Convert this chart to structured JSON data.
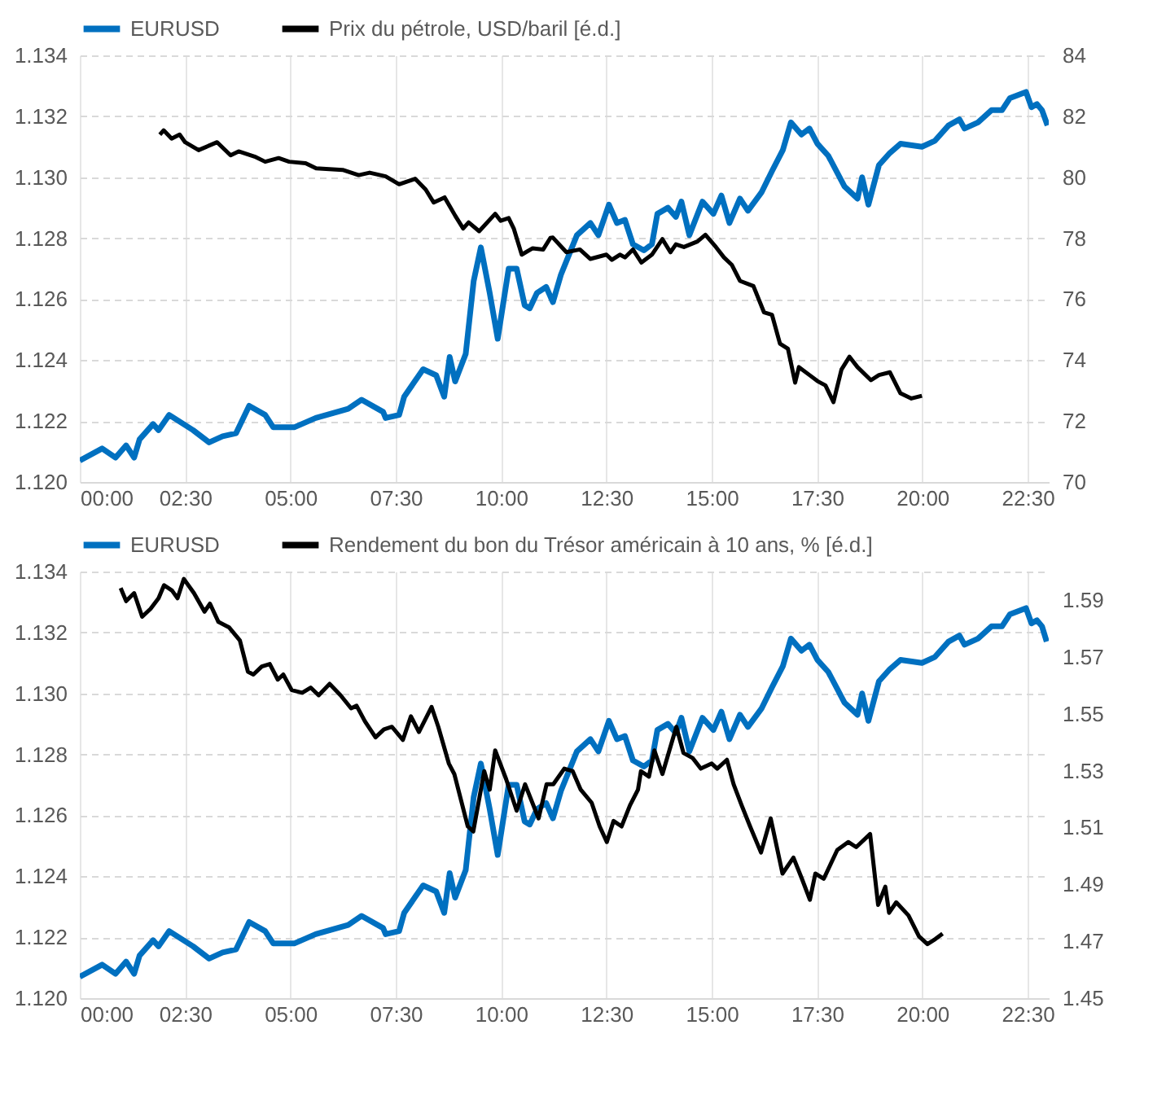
{
  "chart_data": [
    {
      "type": "line",
      "xlim": [
        0,
        23
      ],
      "xticks": [
        {
          "value": 0,
          "label": "00:00"
        },
        {
          "value": 2.5,
          "label": "02:30"
        },
        {
          "value": 5,
          "label": "05:00"
        },
        {
          "value": 7.5,
          "label": "07:30"
        },
        {
          "value": 10,
          "label": "10:00"
        },
        {
          "value": 12.5,
          "label": "12:30"
        },
        {
          "value": 15,
          "label": "15:00"
        },
        {
          "value": 17.5,
          "label": "17:30"
        },
        {
          "value": 20,
          "label": "20:00"
        },
        {
          "value": 22.5,
          "label": "22:30"
        }
      ],
      "ylim": [
        1.12,
        1.134
      ],
      "yticks": [
        {
          "value": 1.12,
          "label": "1.120"
        },
        {
          "value": 1.122,
          "label": "1.122"
        },
        {
          "value": 1.124,
          "label": "1.124"
        },
        {
          "value": 1.126,
          "label": "1.126"
        },
        {
          "value": 1.128,
          "label": "1.128"
        },
        {
          "value": 1.13,
          "label": "1.130"
        },
        {
          "value": 1.132,
          "label": "1.132"
        },
        {
          "value": 1.134,
          "label": "1.134"
        }
      ],
      "y2lim": [
        70,
        84
      ],
      "y2ticks": [
        70,
        72,
        74,
        76,
        78,
        80,
        82,
        84
      ],
      "grid": true,
      "legend": "top",
      "series": [
        {
          "name": "EURUSD",
          "color": "#0070c0",
          "x": [
            0,
            0.53,
            0.85,
            1.1,
            1.29,
            1.42,
            1.74,
            1.87,
            2.12,
            2.69,
            3.07,
            3.39,
            3.71,
            4.02,
            4.4,
            4.59,
            5.1,
            5.6,
            6.37,
            6.69,
            7.2,
            7.26,
            7.58,
            7.7,
            8.15,
            8.46,
            8.65,
            8.78,
            8.91,
            9.16,
            9.35,
            9.52,
            9.73,
            9.92,
            10.18,
            10.37,
            10.56,
            10.68,
            10.85,
            11.07,
            11.23,
            11.42,
            11.8,
            12.12,
            12.31,
            12.56,
            12.75,
            12.94,
            13.13,
            13.39,
            13.58,
            13.71,
            13.96,
            14.15,
            14.28,
            14.47,
            14.78,
            15.04,
            15.23,
            15.42,
            15.67,
            15.86,
            16.18,
            16.43,
            16.69,
            16.88,
            17.13,
            17.32,
            17.51,
            17.77,
            18.15,
            18.46,
            18.57,
            18.72,
            18.97,
            19.23,
            19.48,
            19.99,
            20.3,
            20.62,
            20.88,
            21.0,
            21.32,
            21.64,
            21.89,
            22.08,
            22.27,
            22.46,
            22.59,
            22.72,
            22.84,
            22.97
          ],
          "values": [
            1.1207,
            1.1211,
            1.1208,
            1.1212,
            1.1208,
            1.1214,
            1.1219,
            1.1217,
            1.1222,
            1.1217,
            1.1213,
            1.1215,
            1.1216,
            1.1225,
            1.1222,
            1.1218,
            1.1218,
            1.1221,
            1.1224,
            1.1227,
            1.1223,
            1.1221,
            1.1222,
            1.1228,
            1.1237,
            1.1235,
            1.1228,
            1.1241,
            1.1233,
            1.1242,
            1.1266,
            1.1277,
            1.1262,
            1.1247,
            1.127,
            1.127,
            1.1258,
            1.1257,
            1.1262,
            1.1264,
            1.1259,
            1.1268,
            1.1281,
            1.1285,
            1.1281,
            1.1291,
            1.1285,
            1.1286,
            1.1278,
            1.1276,
            1.1278,
            1.1288,
            1.129,
            1.1287,
            1.1292,
            1.1281,
            1.1292,
            1.1288,
            1.1294,
            1.1285,
            1.1293,
            1.1289,
            1.1295,
            1.1302,
            1.1309,
            1.1318,
            1.1314,
            1.1316,
            1.1311,
            1.1307,
            1.1297,
            1.1293,
            1.13,
            1.1291,
            1.1304,
            1.1308,
            1.1311,
            1.131,
            1.1312,
            1.1317,
            1.1319,
            1.1316,
            1.1318,
            1.1322,
            1.1322,
            1.1326,
            1.1327,
            1.1328,
            1.1323,
            1.1324,
            1.1322,
            1.1317
          ]
        },
        {
          "name": "Prix du pétrole, USD/baril [é.d.]",
          "color": "#000000",
          "axis": "y2",
          "x": [
            1.9,
            1.99,
            2.18,
            2.37,
            2.5,
            2.82,
            3.26,
            3.58,
            3.77,
            4.15,
            4.4,
            4.72,
            4.97,
            5.36,
            5.61,
            6.24,
            6.62,
            6.88,
            7.26,
            7.58,
            7.96,
            8.21,
            8.4,
            8.66,
            8.91,
            9.1,
            9.23,
            9.48,
            9.86,
            9.99,
            10.18,
            10.3,
            10.49,
            10.75,
            11.0,
            11.17,
            11.23,
            11.55,
            11.87,
            12.12,
            12.5,
            12.63,
            12.82,
            12.94,
            13.13,
            13.33,
            13.58,
            13.83,
            14.02,
            14.15,
            14.34,
            14.66,
            14.85,
            15.1,
            15.29,
            15.48,
            15.67,
            15.99,
            16.24,
            16.43,
            16.62,
            16.81,
            16.98,
            17.07,
            17.32,
            17.51,
            17.7,
            17.89,
            18.08,
            18.27,
            18.46,
            18.78,
            18.97,
            19.23,
            19.48,
            19.74,
            19.99
          ],
          "values": [
            81.4,
            81.54,
            81.27,
            81.4,
            81.15,
            80.89,
            81.15,
            80.72,
            80.85,
            80.68,
            80.51,
            80.63,
            80.51,
            80.46,
            80.29,
            80.24,
            80.07,
            80.15,
            80.03,
            79.77,
            79.95,
            79.6,
            79.17,
            79.34,
            78.74,
            78.32,
            78.52,
            78.23,
            78.8,
            78.57,
            78.66,
            78.32,
            77.46,
            77.67,
            77.63,
            78.01,
            78.02,
            77.54,
            77.63,
            77.32,
            77.46,
            77.29,
            77.46,
            77.37,
            77.63,
            77.2,
            77.46,
            77.97,
            77.54,
            77.8,
            77.71,
            77.89,
            78.11,
            77.71,
            77.37,
            77.12,
            76.6,
            76.43,
            75.57,
            75.49,
            74.54,
            74.37,
            73.26,
            73.77,
            73.51,
            73.31,
            73.17,
            72.62,
            73.69,
            74.11,
            73.77,
            73.34,
            73.51,
            73.6,
            72.91,
            72.74,
            72.83
          ]
        }
      ]
    },
    {
      "type": "line",
      "xlim": [
        0,
        23
      ],
      "xticks": [
        {
          "value": 0,
          "label": "00:00"
        },
        {
          "value": 2.5,
          "label": "02:30"
        },
        {
          "value": 5,
          "label": "05:00"
        },
        {
          "value": 7.5,
          "label": "07:30"
        },
        {
          "value": 10,
          "label": "10:00"
        },
        {
          "value": 12.5,
          "label": "12:30"
        },
        {
          "value": 15,
          "label": "15:00"
        },
        {
          "value": 17.5,
          "label": "17:30"
        },
        {
          "value": 20,
          "label": "20:00"
        },
        {
          "value": 22.5,
          "label": "22:30"
        }
      ],
      "ylim": [
        1.12,
        1.134
      ],
      "yticks": [
        {
          "value": 1.12,
          "label": "1.120"
        },
        {
          "value": 1.122,
          "label": "1.122"
        },
        {
          "value": 1.124,
          "label": "1.124"
        },
        {
          "value": 1.126,
          "label": "1.126"
        },
        {
          "value": 1.128,
          "label": "1.128"
        },
        {
          "value": 1.13,
          "label": "1.130"
        },
        {
          "value": 1.132,
          "label": "1.132"
        },
        {
          "value": 1.134,
          "label": "1.134"
        }
      ],
      "y2lim": [
        1.45,
        1.6
      ],
      "y2ticks": [
        1.45,
        1.47,
        1.49,
        1.51,
        1.53,
        1.55,
        1.57,
        1.59
      ],
      "grid": true,
      "legend": "top",
      "series": [
        {
          "name": "EURUSD",
          "color": "#0070c0",
          "x": [
            0,
            0.53,
            0.85,
            1.1,
            1.29,
            1.42,
            1.74,
            1.87,
            2.12,
            2.69,
            3.07,
            3.39,
            3.71,
            4.02,
            4.4,
            4.59,
            5.1,
            5.6,
            6.37,
            6.69,
            7.2,
            7.26,
            7.58,
            7.7,
            8.15,
            8.46,
            8.65,
            8.78,
            8.91,
            9.16,
            9.35,
            9.52,
            9.73,
            9.92,
            10.18,
            10.37,
            10.56,
            10.68,
            10.85,
            11.07,
            11.23,
            11.42,
            11.8,
            12.12,
            12.31,
            12.56,
            12.75,
            12.94,
            13.13,
            13.39,
            13.58,
            13.71,
            13.96,
            14.15,
            14.28,
            14.47,
            14.78,
            15.04,
            15.23,
            15.42,
            15.67,
            15.86,
            16.18,
            16.43,
            16.69,
            16.88,
            17.13,
            17.32,
            17.51,
            17.77,
            18.15,
            18.46,
            18.57,
            18.72,
            18.97,
            19.23,
            19.48,
            19.99,
            20.3,
            20.62,
            20.88,
            21.0,
            21.32,
            21.64,
            21.89,
            22.08,
            22.27,
            22.46,
            22.59,
            22.72,
            22.84,
            22.95
          ],
          "values": [
            1.1207,
            1.1211,
            1.1208,
            1.1212,
            1.1208,
            1.1214,
            1.1219,
            1.1217,
            1.1222,
            1.1217,
            1.1213,
            1.1215,
            1.1216,
            1.1225,
            1.1222,
            1.1218,
            1.1218,
            1.1221,
            1.1224,
            1.1227,
            1.1223,
            1.1221,
            1.1222,
            1.1228,
            1.1237,
            1.1235,
            1.1228,
            1.1241,
            1.1233,
            1.1242,
            1.1266,
            1.1277,
            1.1262,
            1.1247,
            1.127,
            1.127,
            1.1258,
            1.1257,
            1.1262,
            1.1264,
            1.1259,
            1.1268,
            1.1281,
            1.1285,
            1.1281,
            1.1291,
            1.1285,
            1.1286,
            1.1278,
            1.1276,
            1.1278,
            1.1288,
            1.129,
            1.1287,
            1.1292,
            1.1281,
            1.1292,
            1.1288,
            1.1294,
            1.1285,
            1.1293,
            1.1289,
            1.1295,
            1.1302,
            1.1309,
            1.1318,
            1.1314,
            1.1316,
            1.1311,
            1.1307,
            1.1297,
            1.1293,
            1.13,
            1.1291,
            1.1304,
            1.1308,
            1.1311,
            1.131,
            1.1312,
            1.1317,
            1.1319,
            1.1316,
            1.1318,
            1.1322,
            1.1322,
            1.1326,
            1.1327,
            1.1328,
            1.1323,
            1.1324,
            1.1322,
            1.1317
          ]
        },
        {
          "name": "Rendement du bon du Trésor américain à 10 ans, %  [é.d.]",
          "color": "#000000",
          "axis": "y2",
          "x": [
            0.97,
            1.1,
            1.29,
            1.48,
            1.68,
            1.87,
            2.0,
            2.19,
            2.32,
            2.47,
            2.71,
            2.96,
            3.09,
            3.29,
            3.54,
            3.8,
            3.99,
            4.12,
            4.32,
            4.51,
            4.7,
            4.83,
            5.03,
            5.28,
            5.48,
            5.67,
            5.93,
            6.19,
            6.44,
            6.57,
            6.77,
            7.02,
            7.22,
            7.41,
            7.67,
            7.86,
            8.05,
            8.35,
            8.51,
            8.76,
            8.89,
            9.21,
            9.34,
            9.6,
            9.73,
            9.86,
            10.12,
            10.37,
            10.57,
            10.89,
            11.08,
            11.24,
            11.5,
            11.7,
            11.89,
            12.15,
            12.34,
            12.51,
            12.67,
            12.86,
            13.06,
            13.25,
            13.32,
            13.51,
            13.64,
            13.83,
            14.16,
            14.33,
            14.55,
            14.74,
            15.0,
            15.13,
            15.36,
            15.52,
            15.71,
            15.91,
            16.17,
            16.4,
            16.68,
            16.94,
            17.14,
            17.33,
            17.46,
            17.66,
            17.98,
            18.24,
            18.43,
            18.76,
            18.95,
            19.12,
            19.21,
            19.38,
            19.67,
            19.92,
            20.12,
            20.31,
            20.48
          ],
          "values": [
            1.5942,
            1.5896,
            1.5924,
            1.5841,
            1.5869,
            1.5906,
            1.5952,
            1.5933,
            1.5906,
            1.5974,
            1.5924,
            1.5859,
            1.5887,
            1.5823,
            1.5804,
            1.5758,
            1.5648,
            1.5638,
            1.5666,
            1.5675,
            1.562,
            1.5638,
            1.5583,
            1.5574,
            1.5592,
            1.5565,
            1.5605,
            1.5565,
            1.5519,
            1.5528,
            1.5473,
            1.5417,
            1.5445,
            1.5454,
            1.5408,
            1.5491,
            1.5436,
            1.5524,
            1.5454,
            1.5325,
            1.5288,
            1.5104,
            1.5086,
            1.5298,
            1.5233,
            1.5371,
            1.527,
            1.5159,
            1.5252,
            1.5132,
            1.5252,
            1.5252,
            1.5307,
            1.5298,
            1.5233,
            1.5187,
            1.5104,
            1.5049,
            1.5123,
            1.5104,
            1.5178,
            1.5233,
            1.5298,
            1.5279,
            1.5371,
            1.5288,
            1.5454,
            1.5362,
            1.5344,
            1.5307,
            1.5325,
            1.5307,
            1.5338,
            1.5252,
            1.5178,
            1.5104,
            1.5012,
            1.5132,
            1.4938,
            1.4994,
            1.492,
            1.4846,
            1.4938,
            1.492,
            1.5021,
            1.5049,
            1.5031,
            1.5077,
            1.4828,
            1.4892,
            1.48,
            1.4837,
            1.4791,
            1.4717,
            1.469,
            1.4708,
            1.4727
          ]
        }
      ]
    }
  ]
}
